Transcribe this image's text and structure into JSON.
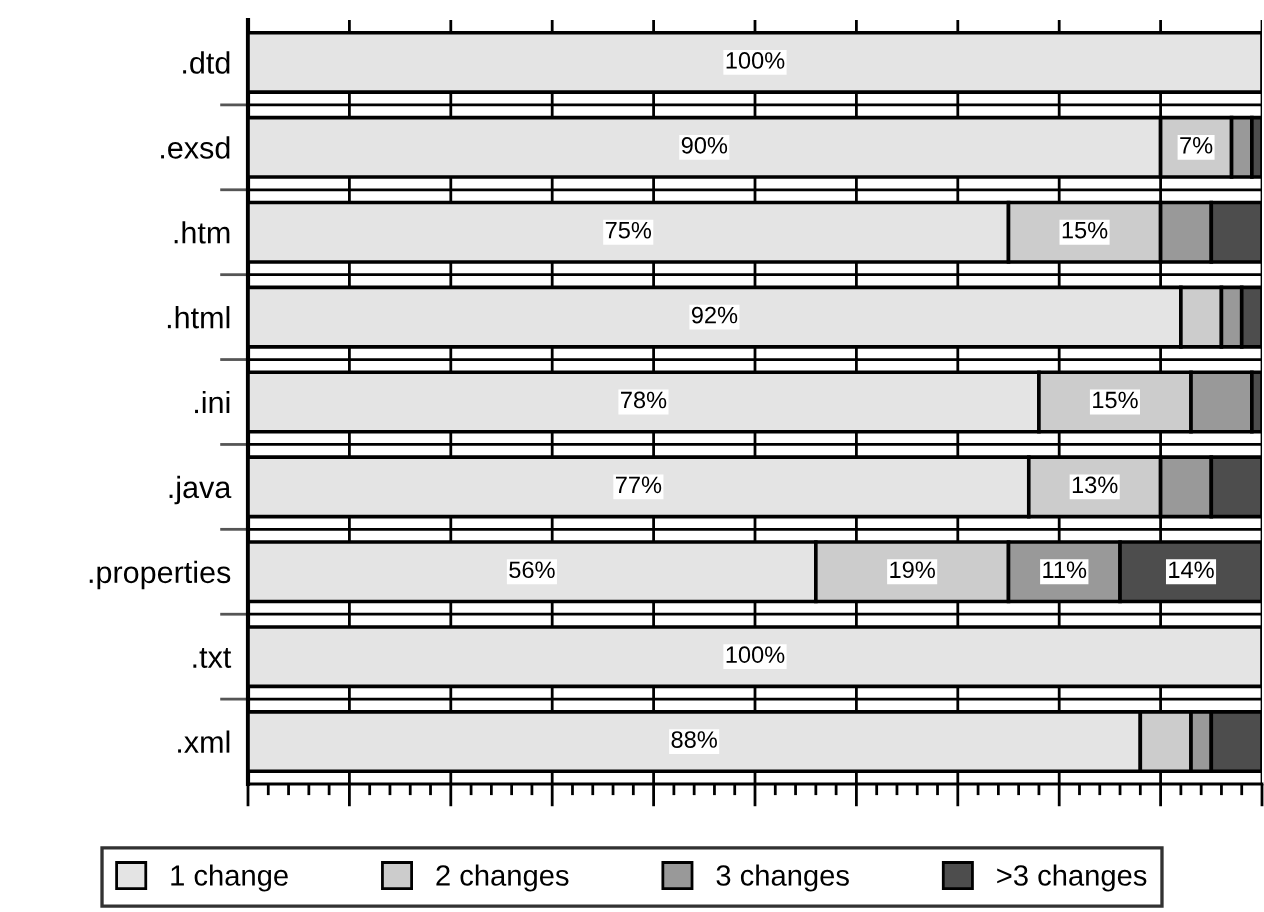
{
  "chart_data": {
    "type": "bar",
    "orientation": "horizontal",
    "stacked": true,
    "categories": [
      ".dtd",
      ".exsd",
      ".htm",
      ".html",
      ".ini",
      ".java",
      ".properties",
      ".txt",
      ".xml"
    ],
    "series": [
      {
        "name": "1 change",
        "color": "#e4e4e4",
        "values": [
          100,
          90,
          75,
          92,
          78,
          77,
          56,
          100,
          88
        ],
        "value_labels": [
          "100%",
          "90%",
          "75%",
          "92%",
          "78%",
          "77%",
          "56%",
          "100%",
          "88%"
        ]
      },
      {
        "name": "2 changes",
        "color": "#cccccc",
        "values": [
          null,
          7,
          15,
          4,
          15,
          13,
          19,
          null,
          5
        ],
        "value_labels": [
          null,
          "7%",
          "15%",
          null,
          "15%",
          "13%",
          "19%",
          null,
          null
        ]
      },
      {
        "name": "3 changes",
        "color": "#999999",
        "values": [
          null,
          2,
          5,
          2,
          6,
          5,
          11,
          null,
          2
        ],
        "value_labels": [
          null,
          null,
          null,
          null,
          null,
          null,
          "11%",
          null,
          null
        ]
      },
      {
        "name": ">3 changes",
        "color": "#4d4d4d",
        "values": [
          null,
          1,
          5,
          2,
          1,
          5,
          14,
          null,
          5
        ],
        "value_labels": [
          null,
          null,
          null,
          null,
          null,
          null,
          "14%",
          null,
          null
        ]
      }
    ],
    "xlim": [
      0,
      100
    ],
    "xticks": [
      {
        "value": 0,
        "label": null
      },
      {
        "value": 10,
        "label": null
      },
      {
        "value": 20,
        "label": null
      },
      {
        "value": 30,
        "label": null
      },
      {
        "value": 40,
        "label": null
      },
      {
        "value": 50,
        "label": null
      },
      {
        "value": 60,
        "label": null
      },
      {
        "value": 70,
        "label": null
      },
      {
        "value": 80,
        "label": null
      },
      {
        "value": 90,
        "label": null
      },
      {
        "value": 100,
        "label": null
      }
    ],
    "grid": true,
    "legend": "bottom",
    "tick_labels": "y"
  }
}
